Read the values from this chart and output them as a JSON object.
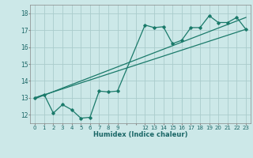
{
  "xlabel": "Humidex (Indice chaleur)",
  "bg_color": "#cce8e8",
  "grid_color": "#aacccc",
  "line_color": "#1a7a6a",
  "xlim": [
    -0.5,
    23.5
  ],
  "ylim": [
    11.5,
    18.5
  ],
  "xtick_positions": [
    0,
    1,
    2,
    3,
    4,
    5,
    6,
    7,
    8,
    9,
    10,
    11,
    12,
    13,
    14,
    15,
    16,
    17,
    18,
    19,
    20,
    21,
    22,
    23
  ],
  "xtick_labels": [
    "0",
    "1",
    "2",
    "3",
    "4",
    "5",
    "6",
    "7",
    "8",
    "9",
    "",
    "",
    "12",
    "13",
    "14",
    "15",
    "16",
    "17",
    "18",
    "19",
    "20",
    "21",
    "22",
    "23"
  ],
  "ytick_positions": [
    12,
    13,
    14,
    15,
    16,
    17,
    18
  ],
  "ytick_labels": [
    "12",
    "13",
    "14",
    "15",
    "16",
    "17",
    "18"
  ],
  "series1_x": [
    0,
    1,
    2,
    3,
    4,
    5,
    6,
    7,
    8,
    9,
    12,
    13,
    14,
    15,
    16,
    17,
    18,
    19,
    20,
    21,
    22,
    23
  ],
  "series1_y": [
    13.0,
    13.2,
    12.1,
    12.6,
    12.3,
    11.8,
    11.85,
    13.4,
    13.35,
    13.4,
    17.3,
    17.15,
    17.2,
    16.2,
    16.4,
    17.15,
    17.15,
    17.85,
    17.45,
    17.45,
    17.75,
    17.05
  ],
  "series2_x": [
    0,
    23
  ],
  "series2_y": [
    13.0,
    17.05
  ],
  "series3_x": [
    0,
    23
  ],
  "series3_y": [
    12.95,
    17.75
  ]
}
